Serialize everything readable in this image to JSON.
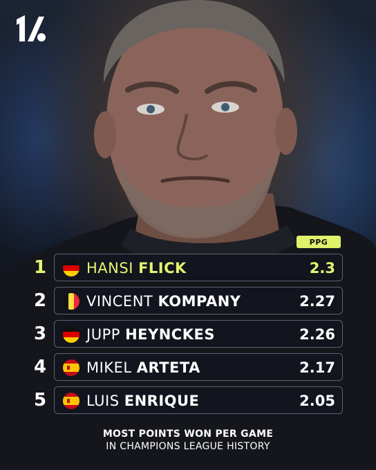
{
  "header": {
    "logo_icon": "onefootball-logo-icon"
  },
  "table": {
    "column_label": "PPG",
    "highlight_color": "#e4f56f",
    "rows": [
      {
        "rank": "1",
        "first": "HANSI",
        "last": "FLICK",
        "value": "2.3",
        "flag_icon": "germany-flag-icon"
      },
      {
        "rank": "2",
        "first": "VINCENT",
        "last": "KOMPANY",
        "value": "2.27",
        "flag_icon": "belgium-flag-icon"
      },
      {
        "rank": "3",
        "first": "JUPP",
        "last": "HEYNCKES",
        "value": "2.26",
        "flag_icon": "germany-flag-icon"
      },
      {
        "rank": "4",
        "first": "MIKEL",
        "last": "ARTETA",
        "value": "2.17",
        "flag_icon": "spain-flag-icon"
      },
      {
        "rank": "5",
        "first": "LUIS",
        "last": "ENRIQUE",
        "value": "2.05",
        "flag_icon": "spain-flag-icon"
      }
    ]
  },
  "caption": {
    "line1": "MOST POINTS WON PER GAME",
    "line2": "IN CHAMPIONS LEAGUE HISTORY"
  }
}
